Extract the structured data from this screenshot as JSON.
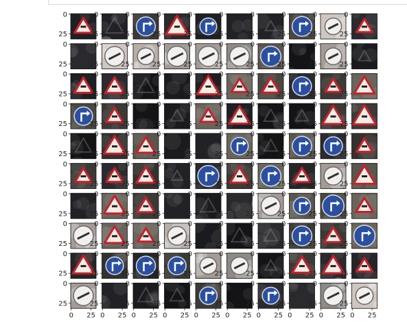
{
  "chart_data": {
    "type": "image-grid",
    "rows": 10,
    "cols": 10,
    "image_size": 32,
    "y_tick_labels": [
      "0",
      "25"
    ],
    "x_tick_labels": [
      "0",
      "25"
    ],
    "x_ticks_shown_on": "bottom row only",
    "sign_kinds": {
      "W": "red-bordered triangular warning sign",
      "B": "blue circular direction sign with white arrow",
      "P": "white circular sign (prohibitory, light)",
      "D": "dark / low-contrast image, sign barely visible"
    },
    "tiles": [
      [
        "W",
        "D",
        "B",
        "W",
        "B",
        "D",
        "D",
        "B",
        "P",
        "W"
      ],
      [
        "D",
        "P",
        "P",
        "P",
        "P",
        "P",
        "B",
        "D",
        "P",
        "D"
      ],
      [
        "W",
        "W",
        "D",
        "D",
        "W",
        "W",
        "W",
        "B",
        "W",
        "W"
      ],
      [
        "B",
        "W",
        "D",
        "D",
        "W",
        "W",
        "D",
        "D",
        "W",
        "W"
      ],
      [
        "D",
        "W",
        "W",
        "D",
        "D",
        "B",
        "D",
        "B",
        "B",
        "W"
      ],
      [
        "W",
        "W",
        "W",
        "D",
        "B",
        "W",
        "B",
        "W",
        "P",
        "W"
      ],
      [
        "D",
        "W",
        "W",
        "D",
        "D",
        "D",
        "P",
        "B",
        "B",
        "W"
      ],
      [
        "P",
        "W",
        "W",
        "P",
        "D",
        "D",
        "D",
        "B",
        "W",
        "B"
      ],
      [
        "W",
        "B",
        "B",
        "B",
        "P",
        "P",
        "D",
        "W",
        "W",
        "W"
      ],
      [
        "P",
        "D",
        "D",
        "D",
        "B",
        "D",
        "B",
        "D",
        "P",
        "P"
      ]
    ]
  },
  "colors": {
    "warning_border": "#c8202a",
    "warning_fill": "#f1eee6",
    "blue_sign": "#2a4fa1",
    "dark_bg": "#1b1b1f",
    "tick_text": "#222222"
  }
}
